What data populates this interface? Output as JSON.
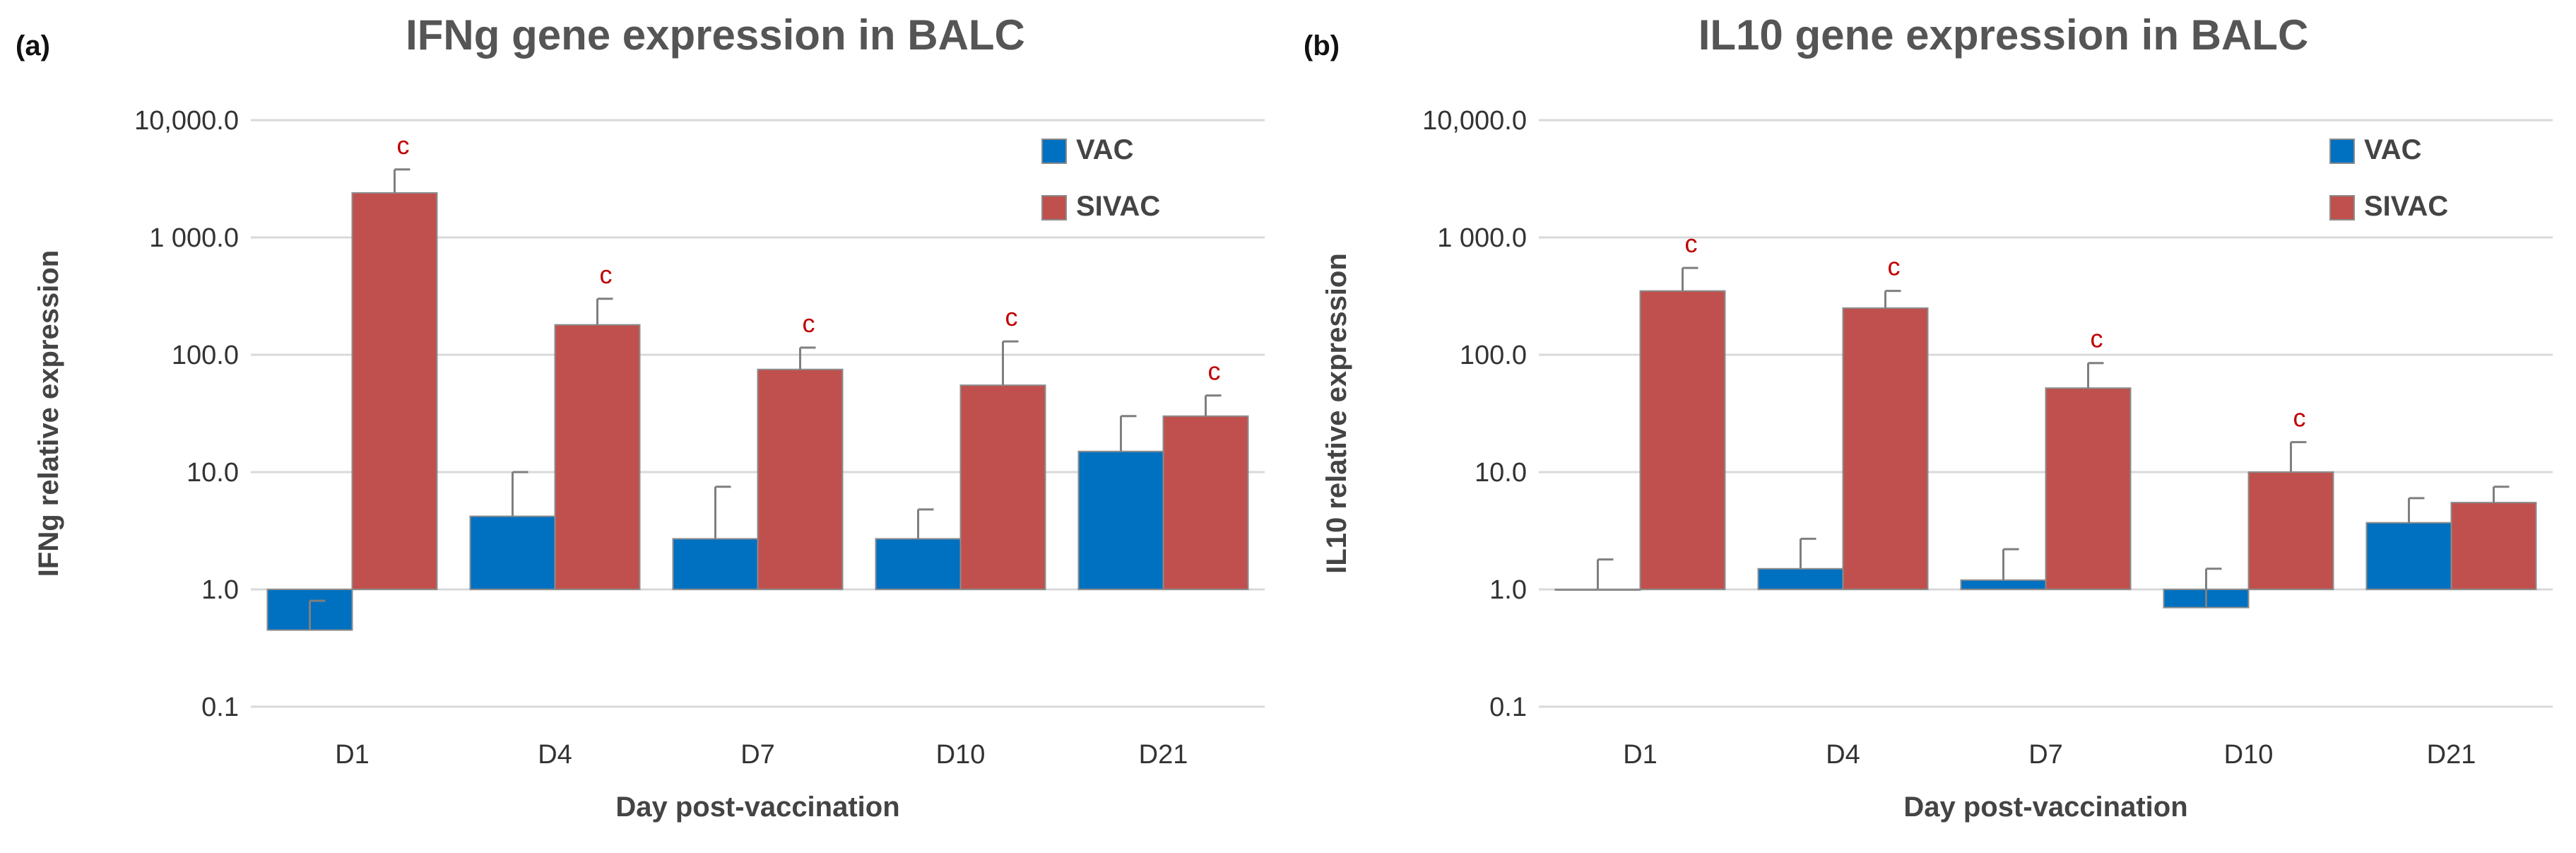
{
  "chart_data": [
    {
      "type": "bar",
      "panel_label": "(a)",
      "title": "IFNg gene expression in BALC",
      "xlabel": "Day post-vaccination",
      "ylabel": "IFNg relative expression",
      "yscale": "log",
      "baseline": 1.0,
      "ylim": [
        0.1,
        10000
      ],
      "ytick_values": [
        0.1,
        1,
        10,
        100,
        1000,
        10000
      ],
      "ytick_labels": [
        "0.1",
        "1.0",
        "10.0",
        "100.0",
        "1 000.0",
        "10,000.0"
      ],
      "grid": "horizontal",
      "legend_position": "top-right",
      "categories": [
        "D1",
        "D4",
        "D7",
        "D10",
        "D21"
      ],
      "series": [
        {
          "name": "VAC",
          "color": "#0070C0",
          "values": [
            0.45,
            4.2,
            2.7,
            2.7,
            15
          ],
          "error_tips": [
            0.8,
            10,
            7.5,
            4.8,
            30
          ]
        },
        {
          "name": "SIVAC",
          "color": "#C0504D",
          "values": [
            2400,
            180,
            75,
            55,
            30
          ],
          "error_tips": [
            3800,
            300,
            115,
            130,
            45
          ]
        }
      ],
      "annotations": [
        {
          "category": "D1",
          "series": "SIVAC",
          "text": "c"
        },
        {
          "category": "D4",
          "series": "SIVAC",
          "text": "c"
        },
        {
          "category": "D7",
          "series": "SIVAC",
          "text": "c"
        },
        {
          "category": "D10",
          "series": "SIVAC",
          "text": "c"
        },
        {
          "category": "D21",
          "series": "SIVAC",
          "text": "c"
        }
      ]
    },
    {
      "type": "bar",
      "panel_label": "(b)",
      "title": "IL10 gene expression in BALC",
      "xlabel": "Day post-vaccination",
      "ylabel": "IL10 relative expression",
      "yscale": "log",
      "baseline": 1.0,
      "ylim": [
        0.1,
        10000
      ],
      "ytick_values": [
        0.1,
        1,
        10,
        100,
        1000,
        10000
      ],
      "ytick_labels": [
        "0.1",
        "1.0",
        "10.0",
        "100.0",
        "1 000.0",
        "10,000.0"
      ],
      "grid": "horizontal",
      "legend_position": "top-right",
      "categories": [
        "D1",
        "D4",
        "D7",
        "D10",
        "D21"
      ],
      "series": [
        {
          "name": "VAC",
          "color": "#0070C0",
          "values": [
            1.0,
            1.5,
            1.2,
            0.7,
            3.7
          ],
          "error_tips": [
            1.8,
            2.7,
            2.2,
            1.5,
            6
          ]
        },
        {
          "name": "SIVAC",
          "color": "#C0504D",
          "values": [
            350,
            250,
            52,
            10,
            5.5
          ],
          "error_tips": [
            550,
            350,
            85,
            18,
            7.5
          ]
        }
      ],
      "annotations": [
        {
          "category": "D1",
          "series": "SIVAC",
          "text": "c"
        },
        {
          "category": "D4",
          "series": "SIVAC",
          "text": "c"
        },
        {
          "category": "D7",
          "series": "SIVAC",
          "text": "c"
        },
        {
          "category": "D10",
          "series": "SIVAC",
          "text": "c"
        }
      ]
    }
  ]
}
